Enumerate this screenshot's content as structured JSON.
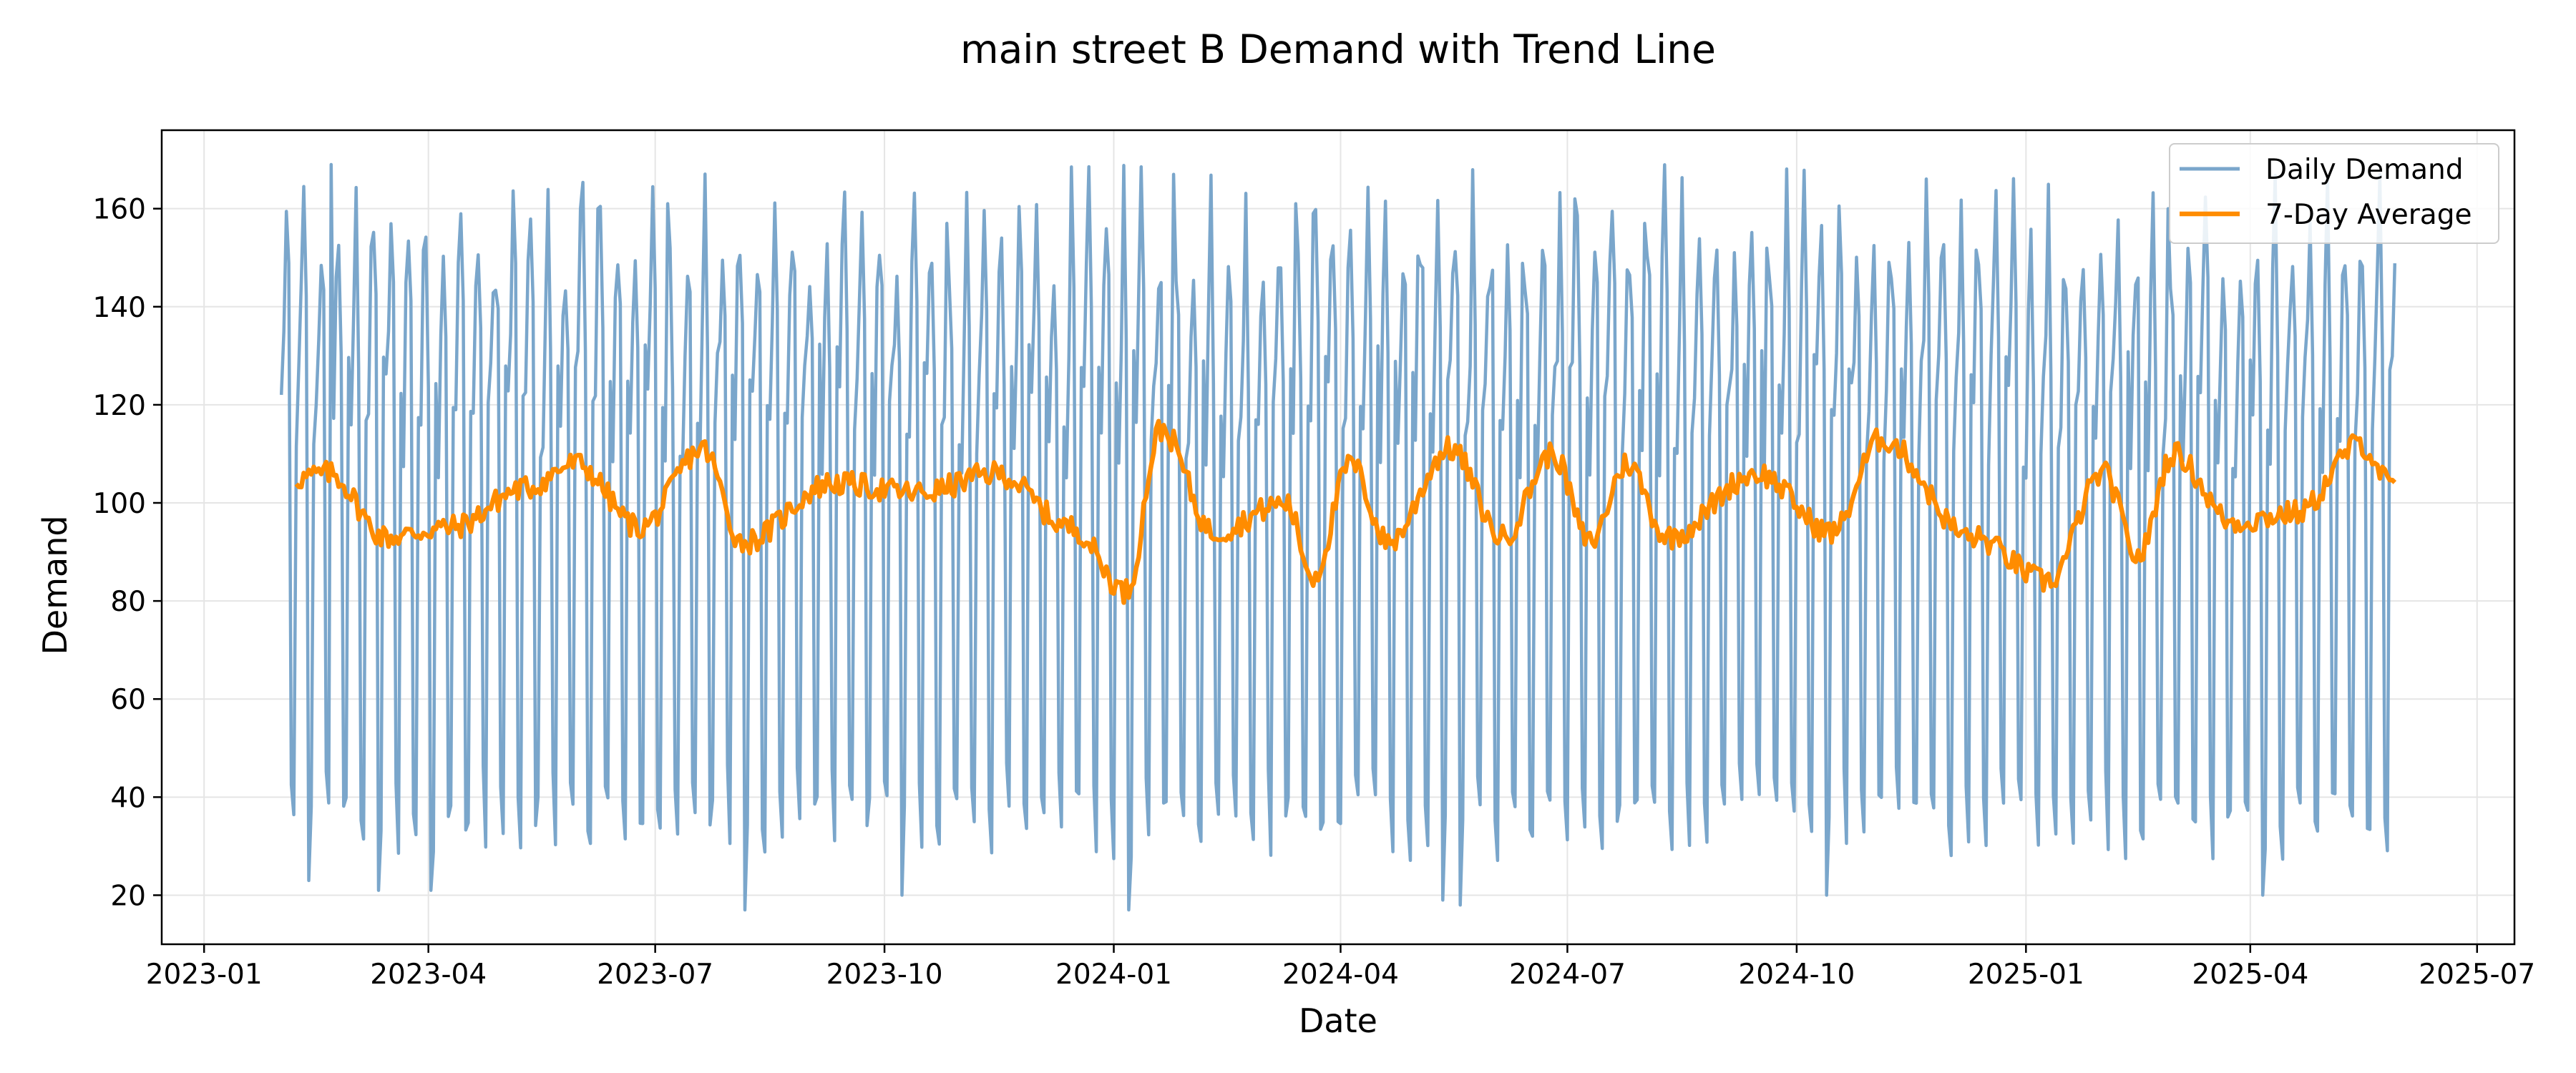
{
  "chart_data": {
    "type": "line",
    "title": "main street B Demand with Trend Line",
    "xlabel": "Date",
    "ylabel": "Demand",
    "x_tick_labels": [
      "2023-01",
      "2023-04",
      "2023-07",
      "2023-10",
      "2024-01",
      "2024-04",
      "2024-07",
      "2024-10",
      "2025-01",
      "2025-04",
      "2025-07"
    ],
    "y_ticks": [
      20,
      40,
      60,
      80,
      100,
      120,
      140,
      160
    ],
    "xlim": [
      "2022-12-15",
      "2025-07-16"
    ],
    "ylim": [
      10,
      176
    ],
    "grid": true,
    "legend_position": "top-right",
    "x_start": "2023-02-01",
    "x_end": "2025-05-29",
    "colors": {
      "daily": "#7aa6cb",
      "avg": "#ff8c00",
      "grid": "#e5e5e5",
      "axes": "#000000"
    },
    "series": [
      {
        "name": "Daily Demand",
        "weekly_pattern": [
          118,
          140,
          156,
          136,
          40,
          34,
          120
        ],
        "peaks": [
          [
            "2023-02-21",
            169
          ],
          [
            "2023-06-01",
            160
          ],
          [
            "2023-06-08",
            160
          ],
          [
            "2023-07-06",
            161
          ],
          [
            "2023-10-26",
            157
          ],
          [
            "2024-01-25",
            167
          ],
          [
            "2024-03-14",
            161
          ],
          [
            "2024-03-21",
            159
          ],
          [
            "2024-07-04",
            162
          ],
          [
            "2024-08-01",
            157
          ],
          [
            "2025-02-27",
            160
          ]
        ],
        "troughs": [
          [
            "2023-02-12",
            23
          ],
          [
            "2023-03-12",
            21
          ],
          [
            "2023-04-02",
            21
          ],
          [
            "2023-08-06",
            17
          ],
          [
            "2023-10-08",
            20
          ],
          [
            "2024-01-07",
            17
          ],
          [
            "2024-05-12",
            19
          ],
          [
            "2024-05-19",
            18
          ],
          [
            "2024-10-13",
            20
          ],
          [
            "2025-04-06",
            20
          ]
        ]
      },
      {
        "name": "7-Day Average",
        "smoothing_window": 7,
        "x": [
          "2023-02-07",
          "2023-02-20",
          "2023-03-15",
          "2023-04-10",
          "2023-05-10",
          "2023-05-30",
          "2023-06-25",
          "2023-07-20",
          "2023-08-05",
          "2023-09-10",
          "2023-10-15",
          "2023-11-15",
          "2023-12-15",
          "2024-01-06",
          "2024-01-20",
          "2024-02-10",
          "2024-03-10",
          "2024-03-21",
          "2024-04-05",
          "2024-04-20",
          "2024-05-15",
          "2024-06-05",
          "2024-06-25",
          "2024-07-10",
          "2024-07-25",
          "2024-08-10",
          "2024-09-15",
          "2024-10-15",
          "2024-11-04",
          "2024-12-10",
          "2025-01-10",
          "2025-02-01",
          "2025-02-15",
          "2025-03-01",
          "2025-03-25",
          "2025-04-20",
          "2025-05-15",
          "2025-05-29"
        ],
        "values": [
          105,
          106,
          93,
          95,
          103,
          108,
          95,
          111,
          92,
          104,
          102,
          106,
          95,
          82,
          115,
          94,
          100,
          85,
          108,
          92,
          111,
          93,
          110,
          92,
          108,
          93,
          106,
          94,
          113,
          93,
          84,
          106,
          89,
          110,
          96,
          98,
          112,
          103
        ]
      }
    ]
  }
}
